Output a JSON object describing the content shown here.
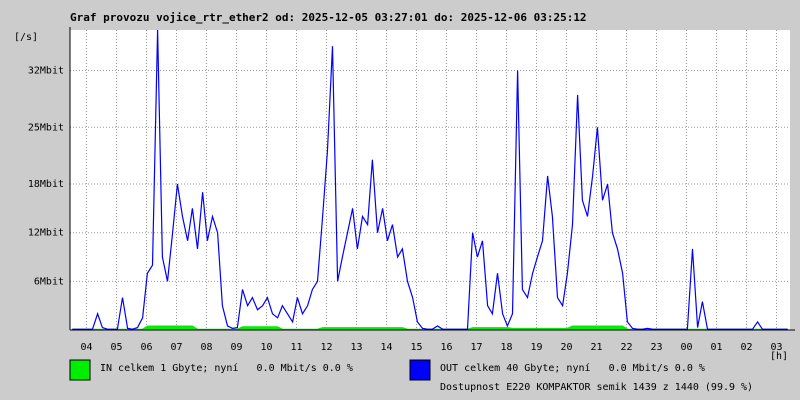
{
  "chart_data": {
    "type": "line",
    "title": "Graf provozu vojice_rtr_ether2 od: 2025-12-05 03:27:01 do: 2025-12-06 03:25:12",
    "y_unit": "[/s]",
    "x_unit": "[h]",
    "note": "Dostupnost E220 KOMPAKTOR semik 1439 z 1440 (99.9 %)",
    "note_color": "#ff0000",
    "grid": true,
    "xlim": [
      0,
      24
    ],
    "ylim": [
      0,
      37
    ],
    "xticks": [
      {
        "value": 0.55,
        "label": "04"
      },
      {
        "value": 1.55,
        "label": "05"
      },
      {
        "value": 2.55,
        "label": "06"
      },
      {
        "value": 3.55,
        "label": "07"
      },
      {
        "value": 4.55,
        "label": "08"
      },
      {
        "value": 5.55,
        "label": "09"
      },
      {
        "value": 6.55,
        "label": "10"
      },
      {
        "value": 7.55,
        "label": "11"
      },
      {
        "value": 8.55,
        "label": "12"
      },
      {
        "value": 9.55,
        "label": "13"
      },
      {
        "value": 10.55,
        "label": "14"
      },
      {
        "value": 11.55,
        "label": "15"
      },
      {
        "value": 12.55,
        "label": "16"
      },
      {
        "value": 13.55,
        "label": "17"
      },
      {
        "value": 14.55,
        "label": "18"
      },
      {
        "value": 15.55,
        "label": "19"
      },
      {
        "value": 16.55,
        "label": "20"
      },
      {
        "value": 17.55,
        "label": "21"
      },
      {
        "value": 18.55,
        "label": "22"
      },
      {
        "value": 19.55,
        "label": "23"
      },
      {
        "value": 20.55,
        "label": "00"
      },
      {
        "value": 21.55,
        "label": "01"
      },
      {
        "value": 22.55,
        "label": "02"
      },
      {
        "value": 23.55,
        "label": "03"
      }
    ],
    "yticks": [
      {
        "value": 6,
        "label": "6Mbit"
      },
      {
        "value": 12,
        "label": "12Mbit"
      },
      {
        "value": 18,
        "label": "18Mbit"
      },
      {
        "value": 25,
        "label": "25Mbit"
      },
      {
        "value": 32,
        "label": "32Mbit"
      }
    ],
    "x": [
      0.08,
      0.25,
      0.42,
      0.58,
      0.75,
      0.92,
      1.08,
      1.25,
      1.42,
      1.58,
      1.75,
      1.92,
      2.08,
      2.25,
      2.42,
      2.58,
      2.75,
      2.92,
      3.08,
      3.25,
      3.42,
      3.58,
      3.75,
      3.92,
      4.08,
      4.25,
      4.42,
      4.58,
      4.75,
      4.92,
      5.08,
      5.25,
      5.42,
      5.58,
      5.75,
      5.92,
      6.08,
      6.25,
      6.42,
      6.58,
      6.75,
      6.92,
      7.08,
      7.25,
      7.42,
      7.58,
      7.75,
      7.92,
      8.08,
      8.25,
      8.42,
      8.58,
      8.75,
      8.92,
      9.08,
      9.25,
      9.42,
      9.58,
      9.75,
      9.92,
      10.08,
      10.25,
      10.42,
      10.58,
      10.75,
      10.92,
      11.08,
      11.25,
      11.42,
      11.58,
      11.75,
      11.92,
      12.08,
      12.25,
      12.42,
      12.58,
      12.75,
      12.92,
      13.08,
      13.25,
      13.42,
      13.58,
      13.75,
      13.92,
      14.08,
      14.25,
      14.42,
      14.58,
      14.75,
      14.92,
      15.08,
      15.25,
      15.42,
      15.58,
      15.75,
      15.92,
      16.08,
      16.25,
      16.42,
      16.58,
      16.75,
      16.92,
      17.08,
      17.25,
      17.42,
      17.58,
      17.75,
      17.92,
      18.08,
      18.25,
      18.42,
      18.58,
      18.75,
      18.92,
      19.08,
      19.25,
      19.42,
      19.58,
      19.75,
      19.92,
      20.08,
      20.25,
      20.42,
      20.58,
      20.75,
      20.92,
      21.08,
      21.25,
      21.42,
      21.58,
      21.75,
      21.92,
      22.08,
      22.25,
      22.42,
      22.58,
      22.75,
      22.92,
      23.08,
      23.25,
      23.42,
      23.58,
      23.75,
      23.92
    ],
    "series": [
      {
        "name": "IN celkem 1 Gbyte; nyní   0.0 Mbit/s 0.0 %",
        "color": "#00ee00",
        "values": [
          0.1,
          0.1,
          0.1,
          0.1,
          0.1,
          0.1,
          0.1,
          0.1,
          0.1,
          0.1,
          0.1,
          0.1,
          0.1,
          0.1,
          0.1,
          0.5,
          0.5,
          0.5,
          0.5,
          0.5,
          0.5,
          0.5,
          0.5,
          0.5,
          0.5,
          0.1,
          0.1,
          0.1,
          0.1,
          0.1,
          0.1,
          0.1,
          0.1,
          0.1,
          0.4,
          0.4,
          0.4,
          0.4,
          0.4,
          0.4,
          0.4,
          0.4,
          0.1,
          0.1,
          0.1,
          0.1,
          0.1,
          0.1,
          0.1,
          0.1,
          0.3,
          0.3,
          0.3,
          0.3,
          0.3,
          0.3,
          0.3,
          0.3,
          0.3,
          0.3,
          0.3,
          0.3,
          0.3,
          0.3,
          0.3,
          0.3,
          0.3,
          0.1,
          0.1,
          0.1,
          0.1,
          0.1,
          0.1,
          0.1,
          0.1,
          0.1,
          0.1,
          0.1,
          0.1,
          0.1,
          0.3,
          0.3,
          0.3,
          0.3,
          0.3,
          0.3,
          0.3,
          0.3,
          0.2,
          0.2,
          0.2,
          0.2,
          0.2,
          0.2,
          0.2,
          0.2,
          0.2,
          0.2,
          0.2,
          0.2,
          0.5,
          0.5,
          0.5,
          0.5,
          0.5,
          0.5,
          0.5,
          0.5,
          0.5,
          0.5,
          0.5,
          0.1,
          0.1,
          0.1,
          0.1,
          0.1,
          0.1,
          0.1,
          0.1,
          0.1,
          0.1,
          0.1,
          0.1,
          0.1,
          0.1,
          0.1,
          0.1,
          0.1,
          0.1,
          0.1,
          0.1,
          0.1,
          0.1,
          0.1,
          0.1,
          0.1,
          0.1,
          0.1,
          0.1,
          0.1,
          0.1,
          0.1,
          0.1,
          0.1
        ]
      },
      {
        "name": "OUT celkem 40 Gbyte; nyní   0.0 Mbit/s 0.0 %",
        "color": "#0000ff",
        "values": [
          0.1,
          0.1,
          0.1,
          0.1,
          0.1,
          2,
          0.3,
          0.1,
          0.1,
          0.1,
          4,
          0.2,
          0.1,
          0.3,
          1.5,
          7,
          8,
          37,
          9,
          6,
          12,
          18,
          14,
          11,
          15,
          10,
          17,
          11,
          14,
          12,
          3,
          0.5,
          0.2,
          0.3,
          5,
          3,
          4,
          2.5,
          3,
          4,
          2,
          1.5,
          3,
          2,
          1,
          4,
          2,
          3,
          5,
          6,
          14,
          22,
          35,
          6,
          9,
          12,
          15,
          10,
          14,
          13,
          21,
          12,
          15,
          11,
          13,
          9,
          10,
          6,
          4,
          1,
          0.2,
          0.1,
          0.1,
          0.5,
          0.1,
          0.1,
          0.1,
          0.1,
          0.1,
          0.1,
          12,
          9,
          11,
          3,
          2,
          7,
          2,
          0.5,
          2,
          32,
          5,
          4,
          7,
          9,
          11,
          19,
          14,
          4,
          3,
          7,
          13,
          29,
          16,
          14,
          19,
          25,
          16,
          18,
          12,
          10,
          7,
          1,
          0.2,
          0.1,
          0.1,
          0.2,
          0.1,
          0.1,
          0.1,
          0.1,
          0.1,
          0.1,
          0.1,
          0.1,
          10,
          0.3,
          3.5,
          0.1,
          0.1,
          0.1,
          0.1,
          0.1,
          0.1,
          0.1,
          0.1,
          0.1,
          0.1,
          1,
          0.1,
          0.1,
          0.1,
          0.1,
          0.1,
          0.1
        ]
      }
    ]
  }
}
